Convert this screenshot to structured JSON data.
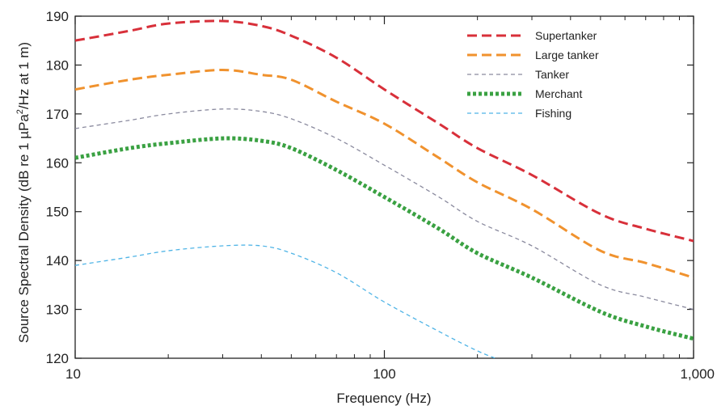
{
  "chart_data": {
    "type": "line",
    "xscale": "log",
    "xlabel": "Frequency (Hz)",
    "ylabel_parts": {
      "pre": "Source Spectral Density (dB re 1 µPa",
      "sup": "2",
      "post": "/Hz at 1 m)"
    },
    "xlim": [
      10,
      1000
    ],
    "ylim": [
      120,
      190
    ],
    "xticks": [
      10,
      100,
      1000
    ],
    "xtick_labels": [
      "10",
      "100",
      "1,000"
    ],
    "yticks": [
      120,
      130,
      140,
      150,
      160,
      170,
      180,
      190
    ],
    "ytick_labels": [
      "120",
      "130",
      "140",
      "150",
      "160",
      "170",
      "180",
      "190"
    ],
    "legend_position": "top-right",
    "grid": false,
    "series": [
      {
        "name": "Supertanker",
        "color": "#d8303a",
        "style": "dashed-thick",
        "points": [
          [
            10,
            185
          ],
          [
            15,
            187
          ],
          [
            20,
            188.5
          ],
          [
            30,
            189
          ],
          [
            40,
            188
          ],
          [
            50,
            186
          ],
          [
            70,
            181.5
          ],
          [
            100,
            175
          ],
          [
            150,
            168
          ],
          [
            200,
            163
          ],
          [
            300,
            157.5
          ],
          [
            500,
            149.5
          ],
          [
            700,
            146.5
          ],
          [
            1000,
            144
          ]
        ]
      },
      {
        "name": "Large tanker",
        "color": "#f0922e",
        "style": "dashed-thick",
        "points": [
          [
            10,
            175
          ],
          [
            15,
            177
          ],
          [
            20,
            178
          ],
          [
            30,
            179
          ],
          [
            40,
            178
          ],
          [
            50,
            177
          ],
          [
            70,
            172.5
          ],
          [
            100,
            168
          ],
          [
            150,
            161
          ],
          [
            200,
            156
          ],
          [
            300,
            150.5
          ],
          [
            500,
            142
          ],
          [
            700,
            139.5
          ],
          [
            1000,
            136.5
          ]
        ]
      },
      {
        "name": "Tanker",
        "color": "#8a8a9e",
        "style": "dashed-thin",
        "points": [
          [
            10,
            167
          ],
          [
            15,
            168.7
          ],
          [
            20,
            170
          ],
          [
            30,
            171
          ],
          [
            40,
            170.5
          ],
          [
            50,
            169
          ],
          [
            70,
            165
          ],
          [
            100,
            159.5
          ],
          [
            150,
            153
          ],
          [
            200,
            148
          ],
          [
            300,
            143
          ],
          [
            500,
            135
          ],
          [
            700,
            132.5
          ],
          [
            1000,
            130
          ]
        ]
      },
      {
        "name": "Merchant",
        "color": "#3aa142",
        "style": "dotted-thick",
        "points": [
          [
            10,
            161
          ],
          [
            15,
            163
          ],
          [
            20,
            164
          ],
          [
            30,
            165
          ],
          [
            40,
            164.5
          ],
          [
            50,
            163
          ],
          [
            70,
            158.5
          ],
          [
            100,
            153
          ],
          [
            150,
            146.5
          ],
          [
            200,
            141.5
          ],
          [
            300,
            136.5
          ],
          [
            500,
            129.5
          ],
          [
            700,
            126.5
          ],
          [
            1000,
            124
          ]
        ]
      },
      {
        "name": "Fishing",
        "color": "#4fb4e6",
        "style": "dashed-thin",
        "points": [
          [
            10,
            139
          ],
          [
            15,
            140.7
          ],
          [
            20,
            142
          ],
          [
            30,
            143
          ],
          [
            40,
            143
          ],
          [
            50,
            141.5
          ],
          [
            70,
            137.5
          ],
          [
            100,
            131.5
          ],
          [
            150,
            125.5
          ],
          [
            200,
            121.5
          ],
          [
            240,
            119.5
          ]
        ]
      }
    ]
  }
}
